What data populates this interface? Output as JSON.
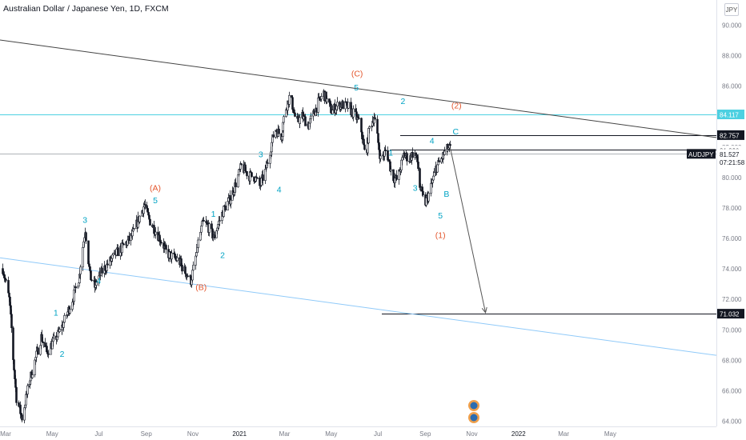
{
  "title": "Australian Dollar / Japanese Yen, 1D, FXCM",
  "currency_button": "JPY",
  "symbol": "AUDJPY",
  "countdown": "07:21:58",
  "colors": {
    "candle": "#131722",
    "wave_teal": "#00a3c4",
    "wave_orange": "#e4572e",
    "cyan_line": "#4dd0e1",
    "channel_line": "#90caf9",
    "trend_line": "#444444",
    "price_box": "#131722",
    "cyan_box": "#4dd0e1"
  },
  "chart_data": {
    "type": "candlestick",
    "title": "Australian Dollar / Japanese Yen, 1D, FXCM",
    "y_axis": {
      "range": [
        63.8,
        91.2
      ],
      "ticks": [
        "64.000",
        "66.000",
        "68.000",
        "70.000",
        "72.000",
        "74.000",
        "76.000",
        "78.000",
        "80.000",
        "82.000",
        "84.000",
        "86.000",
        "88.000",
        "90.000"
      ]
    },
    "x_axis": {
      "ticks": [
        {
          "label": "Mar",
          "t": 0
        },
        {
          "label": "May",
          "t": 61
        },
        {
          "label": "Jul",
          "t": 122
        },
        {
          "label": "Sep",
          "t": 184
        },
        {
          "label": "Nov",
          "t": 245
        },
        {
          "label": "2021",
          "t": 306
        },
        {
          "label": "Mar",
          "t": 365
        },
        {
          "label": "May",
          "t": 426
        },
        {
          "label": "Jul",
          "t": 487
        },
        {
          "label": "Sep",
          "t": 549
        },
        {
          "label": "Nov",
          "t": 610
        },
        {
          "label": "2022",
          "t": 671
        },
        {
          "label": "Mar",
          "t": 730
        },
        {
          "label": "May",
          "t": 791
        }
      ]
    },
    "price_path_anchors": [
      [
        0,
        74.0
      ],
      [
        8,
        72.0
      ],
      [
        18,
        65.5
      ],
      [
        25,
        64.2
      ],
      [
        32,
        66.0
      ],
      [
        40,
        67.5
      ],
      [
        50,
        69.5
      ],
      [
        58,
        68.5
      ],
      [
        70,
        69.5
      ],
      [
        78,
        70.2
      ],
      [
        90,
        71.8
      ],
      [
        100,
        73.5
      ],
      [
        108,
        76.6
      ],
      [
        114,
        73.5
      ],
      [
        120,
        72.8
      ],
      [
        130,
        73.8
      ],
      [
        145,
        74.8
      ],
      [
        155,
        75.3
      ],
      [
        170,
        76.2
      ],
      [
        185,
        78.2
      ],
      [
        192,
        77.2
      ],
      [
        205,
        76.0
      ],
      [
        215,
        75.0
      ],
      [
        230,
        74.5
      ],
      [
        246,
        73.2
      ],
      [
        255,
        75.5
      ],
      [
        262,
        77.0
      ],
      [
        268,
        76.8
      ],
      [
        276,
        76.0
      ],
      [
        282,
        76.9
      ],
      [
        290,
        78.0
      ],
      [
        300,
        78.8
      ],
      [
        312,
        80.7
      ],
      [
        322,
        80.1
      ],
      [
        330,
        80.0
      ],
      [
        336,
        79.4
      ],
      [
        346,
        80.8
      ],
      [
        356,
        83.2
      ],
      [
        364,
        82.7
      ],
      [
        370,
        84.4
      ],
      [
        376,
        85.4
      ],
      [
        384,
        83.5
      ],
      [
        392,
        84.0
      ],
      [
        400,
        83.4
      ],
      [
        410,
        84.6
      ],
      [
        420,
        85.5
      ],
      [
        430,
        84.3
      ],
      [
        440,
        84.8
      ],
      [
        452,
        84.6
      ],
      [
        462,
        84.0
      ],
      [
        468,
        83.4
      ],
      [
        474,
        81.3
      ],
      [
        480,
        83.2
      ],
      [
        486,
        84.0
      ],
      [
        494,
        81.2
      ],
      [
        502,
        81.8
      ],
      [
        510,
        80.0
      ],
      [
        516,
        79.8
      ],
      [
        524,
        81.5
      ],
      [
        532,
        81.2
      ],
      [
        538,
        81.7
      ],
      [
        542,
        81.0
      ],
      [
        546,
        79.4
      ],
      [
        552,
        78.2
      ],
      [
        558,
        79.0
      ],
      [
        566,
        80.5
      ],
      [
        572,
        81.0
      ],
      [
        578,
        81.6
      ],
      [
        582,
        81.9
      ],
      [
        586,
        81.85
      ]
    ],
    "last_t": 586,
    "horizontal_levels": [
      {
        "price": 84.117,
        "label": "84.117",
        "style": "cyan"
      },
      {
        "price": 82.757,
        "label": "82.757",
        "style": "dark"
      },
      {
        "price": 81.82,
        "label": "81.820",
        "style": "dark"
      },
      {
        "price": 81.527,
        "label": "81.527",
        "style": "symbol"
      },
      {
        "price": 71.032,
        "label": "71.032",
        "style": "dark"
      }
    ],
    "trend_lines": [
      {
        "name": "upper-trendline",
        "from": [
          0,
          89.0
        ],
        "to": [
          895,
          82.6
        ]
      },
      {
        "name": "lower-channel",
        "from": [
          0,
          74.7
        ],
        "to": [
          895,
          68.3
        ]
      }
    ],
    "projection_arrow": {
      "from": [
        586,
        81.9
      ],
      "to": [
        632,
        71.1
      ]
    },
    "wave_labels": [
      {
        "text": "1",
        "t": 70,
        "p": 70.9,
        "color": "teal"
      },
      {
        "text": "2",
        "t": 78,
        "p": 68.2,
        "color": "teal"
      },
      {
        "text": "3",
        "t": 108,
        "p": 77.0,
        "color": "teal"
      },
      {
        "text": "4",
        "t": 126,
        "p": 73.0,
        "color": "teal"
      },
      {
        "text": "5",
        "t": 200,
        "p": 78.3,
        "color": "teal"
      },
      {
        "text": "(A)",
        "t": 200,
        "p": 79.1,
        "color": "orange"
      },
      {
        "text": "(B)",
        "t": 260,
        "p": 72.6,
        "color": "orange"
      },
      {
        "text": "1",
        "t": 276,
        "p": 77.4,
        "color": "teal"
      },
      {
        "text": "2",
        "t": 288,
        "p": 74.7,
        "color": "teal"
      },
      {
        "text": "3",
        "t": 338,
        "p": 81.3,
        "color": "teal"
      },
      {
        "text": "4",
        "t": 362,
        "p": 79.0,
        "color": "teal"
      },
      {
        "text": "5",
        "t": 463,
        "p": 85.7,
        "color": "teal"
      },
      {
        "text": "(C)",
        "t": 464,
        "p": 86.6,
        "color": "orange"
      },
      {
        "text": "1",
        "t": 508,
        "p": 81.4,
        "color": "teal"
      },
      {
        "text": "2",
        "t": 524,
        "p": 84.8,
        "color": "teal"
      },
      {
        "text": "3",
        "t": 540,
        "p": 79.1,
        "color": "teal"
      },
      {
        "text": "4",
        "t": 562,
        "p": 82.2,
        "color": "teal"
      },
      {
        "text": "5",
        "t": 573,
        "p": 77.3,
        "color": "teal"
      },
      {
        "text": "(1)",
        "t": 573,
        "p": 76.0,
        "color": "orange"
      },
      {
        "text": "B",
        "t": 581,
        "p": 78.7,
        "color": "teal"
      },
      {
        "text": "C",
        "t": 593,
        "p": 82.8,
        "color": "teal"
      },
      {
        "text": "(2)",
        "t": 594,
        "p": 84.5,
        "color": "orange"
      }
    ],
    "grid": false
  }
}
